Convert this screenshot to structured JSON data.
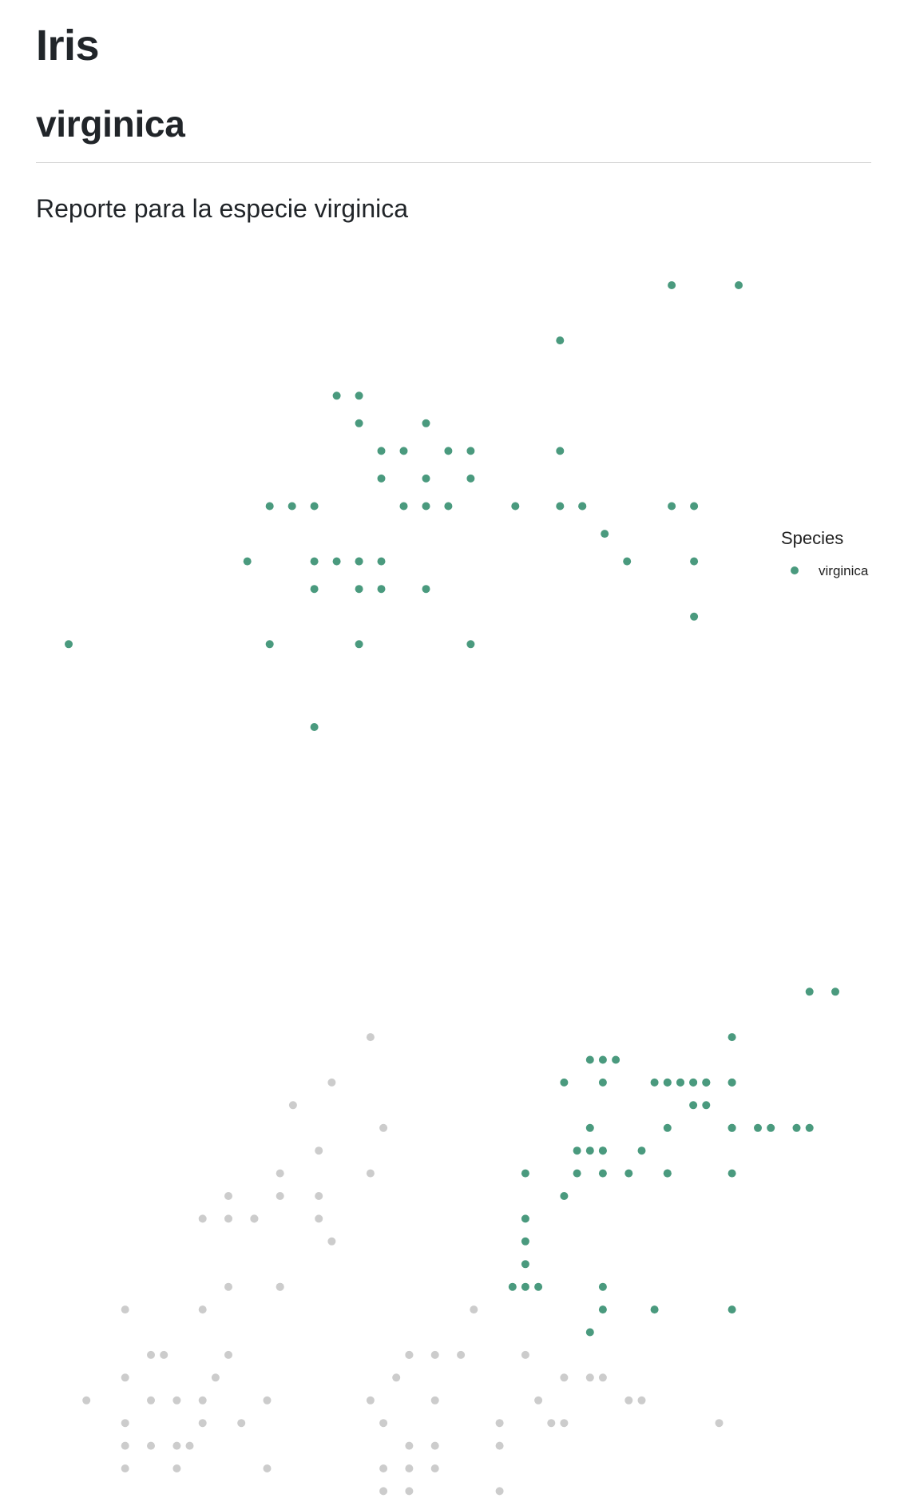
{
  "header": {
    "title": "Iris",
    "subtitle": "virginica",
    "lead": "Reporte para la especie virginica"
  },
  "colors": {
    "highlight": "#4a9a7e",
    "background_points": "#cccccc",
    "text": "#212529",
    "rule": "#d6d6d6"
  },
  "chart_data": [
    {
      "type": "scatter",
      "title": "",
      "xlabel": "",
      "ylabel": "",
      "axes_visible": false,
      "grid": false,
      "legend_position": "right",
      "legend": {
        "title": "Species",
        "entries": [
          "virginica"
        ]
      },
      "xlim": [
        4.9,
        7.9
      ],
      "ylim": [
        2.2,
        3.8
      ],
      "series": [
        {
          "name": "virginica",
          "color": "#4a9a7e",
          "x": [
            7.6,
            7.9,
            7.1,
            6.1,
            6.2,
            6.2,
            6.5,
            6.3,
            6.4,
            6.6,
            6.7,
            7.1,
            6.3,
            6.5,
            6.7,
            5.8,
            5.9,
            6.0,
            6.4,
            6.5,
            6.6,
            6.9,
            7.1,
            7.2,
            7.6,
            7.2,
            7.3,
            7.7,
            6.2,
            5.7,
            6.0,
            6.1,
            6.2,
            6.3,
            7.4,
            7.7,
            6.0,
            6.2,
            6.3,
            6.5,
            7.7,
            4.9,
            5.8,
            6.2,
            6.7,
            6.0
          ],
          "y": [
            3.8,
            3.8,
            3.6,
            3.4,
            3.4,
            3.3,
            3.3,
            3.2,
            3.2,
            3.2,
            3.2,
            3.2,
            3.1,
            3.1,
            3.1,
            3.0,
            3.0,
            3.0,
            3.0,
            3.0,
            3.0,
            3.0,
            3.0,
            3.0,
            3.0,
            3.0,
            2.9,
            3.0,
            2.8,
            2.8,
            2.8,
            2.8,
            2.8,
            2.8,
            2.8,
            2.8,
            2.7,
            2.7,
            2.7,
            2.7,
            2.6,
            2.5,
            2.5,
            2.5,
            2.5,
            2.2
          ]
        }
      ]
    },
    {
      "type": "scatter",
      "title": "",
      "xlabel": "",
      "ylabel": "",
      "axes_visible": false,
      "grid": false,
      "xlim": [
        1.0,
        6.9
      ],
      "ylim": [
        0.1,
        2.5
      ],
      "series": [
        {
          "name": "other species",
          "color": "#cccccc",
          "x": [
            3.3,
            3.0,
            2.7,
            3.4,
            2.9,
            2.6,
            3.3,
            2.6,
            2.9,
            2.2,
            2.0,
            2.2,
            2.4,
            2.4,
            2.9,
            3.0,
            2.6,
            2.6,
            2.2,
            2.0,
            1.4,
            1.6,
            1.7,
            2.2,
            1.4,
            2.1,
            3.5,
            2.0,
            1.6,
            2.5,
            1.8,
            2.0,
            2.3,
            1.1,
            1.4,
            1.8,
            1.9,
            1.6,
            1.4,
            2.5,
            1.4,
            1.8,
            4.1,
            3.6,
            4.0,
            3.8,
            3.6,
            4.5,
            5.0,
            5.1,
            4.8,
            3.8,
            4.6,
            5.3,
            5.4,
            4.7,
            3.4,
            4.3,
            4.8,
            6.0,
            3.6,
            3.8,
            4.3,
            3.8,
            3.6,
            3.4,
            3.4,
            3.6,
            4.3,
            3.3
          ],
          "y": [
            2.0,
            1.8,
            1.7,
            1.6,
            1.5,
            1.4,
            1.4,
            1.3,
            1.3,
            1.3,
            1.2,
            1.2,
            1.2,
            1.2,
            1.2,
            1.1,
            0.9,
            0.9,
            0.9,
            0.8,
            0.8,
            0.6,
            0.6,
            0.6,
            0.5,
            0.5,
            0.5,
            0.4,
            0.4,
            0.4,
            0.4,
            0.3,
            0.3,
            0.4,
            0.3,
            0.2,
            0.2,
            0.2,
            0.1,
            0.1,
            0.2,
            0.1,
            0.8,
            0.6,
            0.6,
            0.6,
            0.6,
            0.6,
            0.5,
            0.5,
            0.5,
            0.4,
            0.4,
            0.4,
            0.4,
            0.3,
            0.3,
            0.3,
            0.3,
            0.3,
            0.2,
            0.2,
            0.2,
            0.1,
            0.1,
            0.1,
            0.0,
            0.0,
            0.0,
            0.4
          ]
        },
        {
          "name": "virginica",
          "color": "#4a9a7e",
          "x": [
            6.7,
            6.9,
            6.1,
            5.0,
            5.1,
            5.1,
            5.6,
            5.8,
            5.9,
            6.1,
            6.1,
            5.2,
            5.6,
            5.8,
            5.9,
            5.9,
            4.8,
            5.5,
            5.7,
            5.7,
            5.8,
            5.9,
            5.0,
            5.6,
            6.1,
            6.1,
            6.3,
            6.4,
            6.6,
            6.7,
            4.9,
            5.0,
            5.1,
            5.1,
            5.4,
            4.5,
            4.9,
            5.1,
            5.3,
            5.6,
            5.6,
            6.1,
            4.8,
            4.5,
            4.5,
            4.5,
            4.5,
            5.1,
            4.4,
            4.6,
            5.1,
            5.5,
            6.1,
            5.0
          ],
          "y": [
            2.2,
            2.2,
            2.0,
            1.9,
            1.9,
            1.8,
            1.8,
            1.8,
            1.8,
            1.8,
            1.8,
            1.9,
            1.8,
            1.8,
            1.8,
            1.8,
            1.8,
            1.8,
            1.8,
            1.8,
            1.7,
            1.7,
            1.6,
            1.6,
            1.6,
            1.6,
            1.6,
            1.6,
            1.6,
            1.6,
            1.5,
            1.5,
            1.5,
            1.5,
            1.5,
            1.4,
            1.4,
            1.4,
            1.4,
            1.4,
            1.4,
            1.4,
            1.3,
            1.2,
            1.1,
            1.0,
            0.9,
            0.9,
            0.9,
            0.9,
            0.8,
            0.8,
            0.8,
            0.7
          ]
        }
      ]
    }
  ]
}
